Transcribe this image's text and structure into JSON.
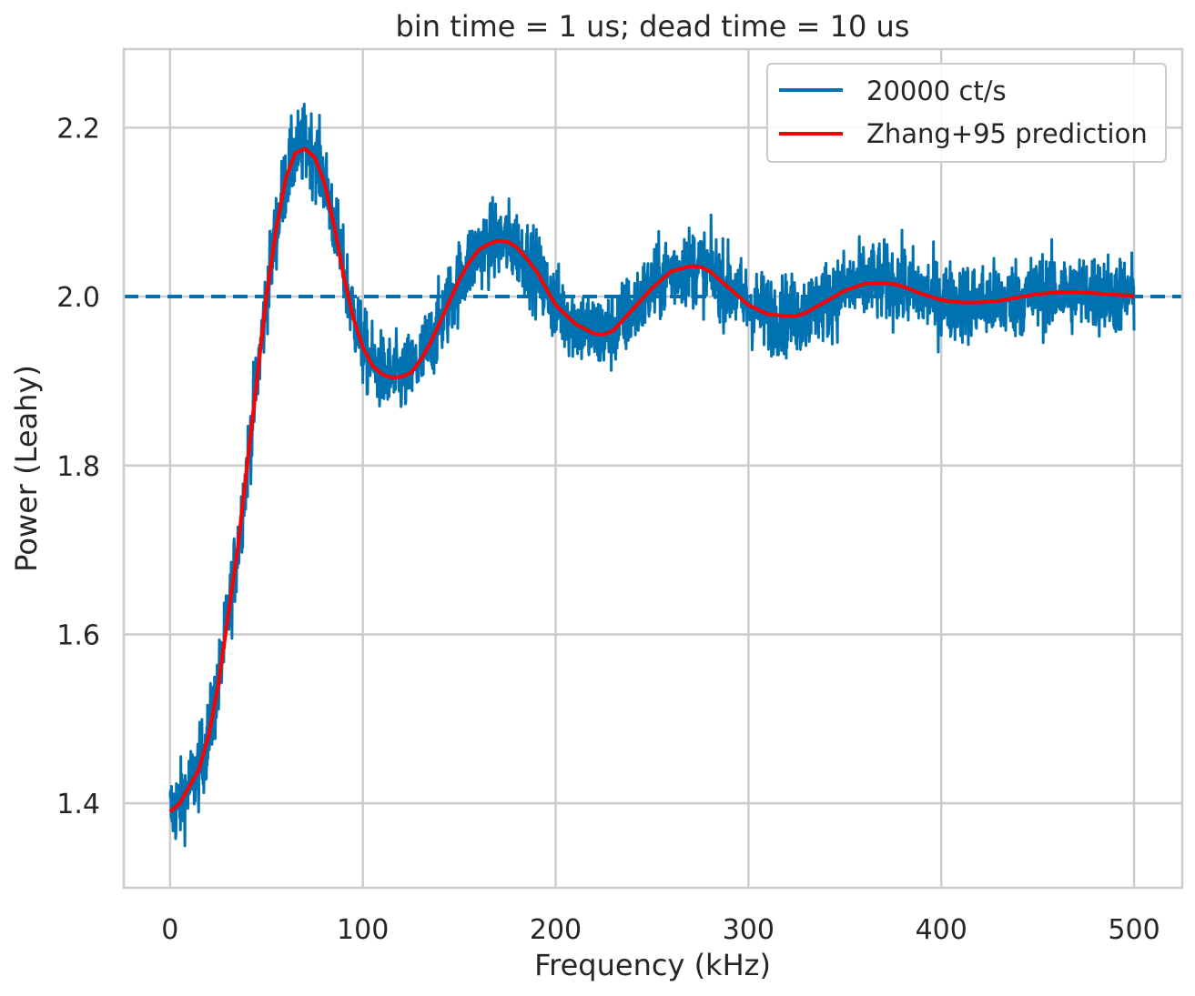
{
  "chart_data": {
    "type": "line",
    "title": "bin time = 1 us; dead time = 10 us",
    "xlabel": "Frequency (kHz)",
    "ylabel": "Power (Leahy)",
    "xlim": [
      -24,
      525
    ],
    "ylim": [
      1.3,
      2.293
    ],
    "xticks": [
      0,
      100,
      200,
      300,
      400,
      500
    ],
    "xtick_labels": [
      "0",
      "100",
      "200",
      "300",
      "400",
      "500"
    ],
    "yticks": [
      1.4,
      1.6,
      1.8,
      2.0,
      2.2
    ],
    "ytick_labels": [
      "1.4",
      "1.6",
      "1.8",
      "2.0",
      "2.2"
    ],
    "grid": true,
    "legend": {
      "placement": "top-right"
    },
    "reference_line": {
      "y": 2.0,
      "style": "dashed",
      "color": "#0072b2"
    },
    "series": [
      {
        "name": "20000 ct/s",
        "color": "#0072b2",
        "style": "noisy",
        "x_range": [
          0,
          500
        ],
        "noise_amplitude": 0.055,
        "x": [
          0,
          5,
          10,
          15,
          20,
          25,
          30,
          35,
          40,
          45,
          50,
          55,
          60,
          65,
          70,
          75,
          80,
          85,
          90,
          95,
          100,
          105,
          110,
          115,
          120,
          125,
          130,
          135,
          140,
          145,
          150,
          155,
          160,
          165,
          170,
          175,
          180,
          185,
          190,
          195,
          200,
          210,
          220,
          225,
          230,
          240,
          250,
          260,
          270,
          275,
          280,
          290,
          300,
          310,
          320,
          325,
          330,
          340,
          350,
          360,
          370,
          375,
          380,
          390,
          400,
          410,
          420,
          430,
          440,
          450,
          460,
          470,
          480,
          490,
          500
        ],
        "y": [
          1.39,
          1.4,
          1.42,
          1.44,
          1.48,
          1.54,
          1.62,
          1.7,
          1.8,
          1.9,
          2.0,
          2.08,
          2.14,
          2.17,
          2.18,
          2.17,
          2.14,
          2.09,
          2.03,
          1.98,
          1.94,
          1.92,
          1.91,
          1.905,
          1.905,
          1.91,
          1.925,
          1.945,
          1.97,
          1.995,
          2.02,
          2.04,
          2.055,
          2.062,
          2.067,
          2.065,
          2.06,
          2.045,
          2.03,
          2.01,
          1.99,
          1.97,
          1.958,
          1.955,
          1.96,
          1.985,
          2.01,
          2.03,
          2.037,
          2.036,
          2.03,
          2.01,
          1.99,
          1.98,
          1.978,
          1.978,
          1.982,
          1.995,
          2.008,
          2.016,
          2.017,
          2.016,
          2.013,
          2.004,
          1.996,
          1.993,
          1.993,
          1.995,
          1.999,
          2.003,
          2.005,
          2.005,
          2.004,
          2.002,
          2.001
        ]
      },
      {
        "name": "Zhang+95 prediction",
        "color": "#ff0000",
        "style": "smooth",
        "x": [
          0,
          5,
          10,
          15,
          20,
          25,
          30,
          35,
          40,
          45,
          50,
          55,
          60,
          65,
          70,
          75,
          80,
          85,
          90,
          95,
          100,
          105,
          110,
          115,
          120,
          125,
          130,
          135,
          140,
          145,
          150,
          155,
          160,
          165,
          170,
          175,
          180,
          185,
          190,
          195,
          200,
          210,
          220,
          225,
          230,
          240,
          250,
          260,
          270,
          275,
          280,
          290,
          300,
          310,
          320,
          325,
          330,
          340,
          350,
          360,
          370,
          375,
          380,
          390,
          400,
          410,
          420,
          430,
          440,
          450,
          460,
          470,
          480,
          490,
          500
        ],
        "y": [
          1.39,
          1.4,
          1.42,
          1.44,
          1.48,
          1.54,
          1.62,
          1.7,
          1.8,
          1.9,
          2.0,
          2.08,
          2.14,
          2.17,
          2.175,
          2.165,
          2.135,
          2.085,
          2.025,
          1.975,
          1.94,
          1.918,
          1.908,
          1.904,
          1.905,
          1.91,
          1.925,
          1.945,
          1.97,
          1.995,
          2.02,
          2.04,
          2.055,
          2.062,
          2.066,
          2.065,
          2.058,
          2.045,
          2.03,
          2.01,
          1.99,
          1.968,
          1.956,
          1.955,
          1.96,
          1.985,
          2.01,
          2.03,
          2.036,
          2.035,
          2.03,
          2.01,
          1.99,
          1.979,
          1.977,
          1.977,
          1.981,
          1.994,
          2.007,
          2.015,
          2.016,
          2.015,
          2.012,
          2.003,
          1.996,
          1.993,
          1.993,
          1.995,
          1.999,
          2.003,
          2.005,
          2.005,
          2.004,
          2.002,
          2.001
        ]
      }
    ]
  }
}
